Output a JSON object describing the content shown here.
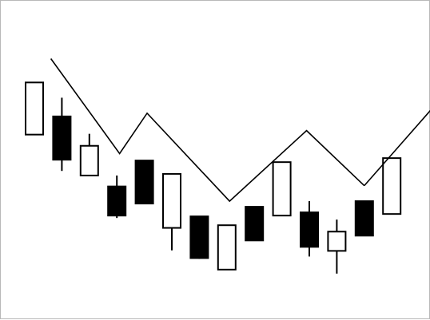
{
  "chart_data": {
    "type": "candlestick",
    "title": "",
    "xlabel": "",
    "ylabel": "",
    "ylim": [
      0,
      100
    ],
    "grid": false,
    "legend": "none",
    "candles": [
      {
        "open": 60.4,
        "high": 79.9,
        "low": 60.4,
        "close": 79.9,
        "direction": "up"
      },
      {
        "open": 67.2,
        "high": 74.2,
        "low": 46.8,
        "close": 51.0,
        "direction": "down"
      },
      {
        "open": 45.1,
        "high": 60.7,
        "low": 45.1,
        "close": 56.2,
        "direction": "up"
      },
      {
        "open": 41.0,
        "high": 45.1,
        "low": 29.2,
        "close": 30.1,
        "direction": "down"
      },
      {
        "open": 50.7,
        "high": 50.7,
        "low": 34.4,
        "close": 34.6,
        "direction": "down"
      },
      {
        "open": 25.5,
        "high": 45.7,
        "low": 17.1,
        "close": 45.7,
        "direction": "up"
      },
      {
        "open": 29.8,
        "high": 29.8,
        "low": 13.9,
        "close": 14.2,
        "direction": "down"
      },
      {
        "open": 9.9,
        "high": 26.5,
        "low": 9.9,
        "close": 26.5,
        "direction": "up"
      },
      {
        "open": 33.4,
        "high": 33.4,
        "low": 20.8,
        "close": 20.8,
        "direction": "down"
      },
      {
        "open": 30.1,
        "high": 50.1,
        "low": 30.1,
        "close": 50.1,
        "direction": "up"
      },
      {
        "open": 31.3,
        "high": 35.5,
        "low": 14.8,
        "close": 18.4,
        "direction": "down"
      },
      {
        "open": 16.9,
        "high": 28.6,
        "low": 8.4,
        "close": 24.1,
        "direction": "up"
      },
      {
        "open": 35.5,
        "high": 35.5,
        "low": 22.6,
        "close": 22.6,
        "direction": "down"
      },
      {
        "open": 30.7,
        "high": 51.6,
        "low": 30.7,
        "close": 51.6,
        "direction": "up"
      }
    ],
    "zigzag_line": {
      "x": [
        0.6,
        3.1,
        4.1,
        7.1,
        9.9,
        12.0,
        15.3
      ],
      "values": [
        88.8,
        53.3,
        68.4,
        35.5,
        61.9,
        41.3,
        79.9
      ],
      "arrowhead": true,
      "color": "#000000",
      "arrow_color": "#7f7f7f"
    },
    "colors": {
      "bearish_body": "#000000",
      "bullish_body": "#ffffff",
      "outline": "#000000",
      "background": "#ffffff",
      "frame": "#b8b8b8"
    }
  }
}
